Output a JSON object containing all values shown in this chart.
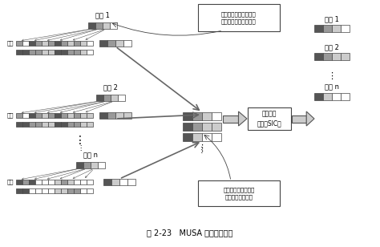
{
  "title": "图 2-23   MUSA 实现原理示意",
  "bg_color": "#ffffff",
  "dark_gray": "#555555",
  "mid_gray": "#999999",
  "light_gray": "#cccccc",
  "white": "#ffffff",
  "border_color": "#444444",
  "users": [
    "用户 1",
    "用户 2",
    "用户 n"
  ],
  "label_expand": "扩展",
  "box_note1": "每个用户的符号通过一\n个特殊的序列进行扩展",
  "box_note2": "扩展后的符号在同样\n的正交资源上传送",
  "sic_label": "串行干扰\n消除（SIC）",
  "dots": "⋮",
  "right_users": [
    "用户 1",
    "用户 2",
    "用户 n"
  ],
  "u1_src": [
    "#555555",
    "#999999",
    "#cccccc",
    "#ffffff"
  ],
  "u2_src": [
    "#555555",
    "#999999",
    "#cccccc",
    "#ffffff"
  ],
  "un_src": [
    "#555555",
    "#999999",
    "#cccccc",
    "#ffffff"
  ],
  "u1_row1": [
    "#999999",
    "#ffffff",
    "#555555",
    "#999999",
    "#cccccc",
    "#999999",
    "#555555",
    "#999999",
    "#cccccc",
    "#999999",
    "#cccccc",
    "#ffffff"
  ],
  "u1_row2": [
    "#555555",
    "#555555",
    "#999999",
    "#999999",
    "#cccccc",
    "#cccccc",
    "#555555",
    "#555555",
    "#999999",
    "#999999",
    "#cccccc",
    "#ffffff"
  ],
  "u2_row1": [
    "#999999",
    "#ffffff",
    "#555555",
    "#999999",
    "#cccccc",
    "#999999",
    "#555555",
    "#999999",
    "#cccccc",
    "#999999",
    "#cccccc",
    "#cccccc"
  ],
  "u2_row2": [
    "#555555",
    "#555555",
    "#999999",
    "#999999",
    "#cccccc",
    "#cccccc",
    "#555555",
    "#555555",
    "#999999",
    "#999999",
    "#cccccc",
    "#cccccc"
  ],
  "un_row1": [
    "#555555",
    "#999999",
    "#555555",
    "#ffffff",
    "#ffffff",
    "#ffffff",
    "#cccccc",
    "#999999",
    "#cccccc",
    "#ffffff",
    "#ffffff",
    "#ffffff"
  ],
  "un_row2": [
    "#555555",
    "#555555",
    "#ffffff",
    "#ffffff",
    "#ffffff",
    "#ffffff",
    "#cccccc",
    "#cccccc",
    "#999999",
    "#999999",
    "#ffffff",
    "#ffffff"
  ],
  "comb1": [
    "#555555",
    "#999999",
    "#cccccc",
    "#ffffff"
  ],
  "comb2": [
    "#555555",
    "#999999",
    "#cccccc",
    "#cccccc"
  ],
  "combn": [
    "#555555",
    "#cccccc",
    "#ffffff",
    "#ffffff"
  ],
  "out1": [
    "#555555",
    "#999999",
    "#cccccc",
    "#ffffff"
  ],
  "out2": [
    "#555555",
    "#999999",
    "#cccccc",
    "#cccccc"
  ],
  "outn": [
    "#555555",
    "#cccccc",
    "#ffffff",
    "#ffffff"
  ]
}
